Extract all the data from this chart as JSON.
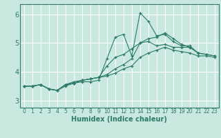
{
  "title": "",
  "xlabel": "Humidex (Indice chaleur)",
  "ylabel": "",
  "background_color": "#c8e8e0",
  "grid_color": "#ffffff",
  "line_color": "#2d7a6a",
  "xlim": [
    -0.5,
    23.5
  ],
  "ylim": [
    2.75,
    6.35
  ],
  "xticks": [
    0,
    1,
    2,
    3,
    4,
    5,
    6,
    7,
    8,
    9,
    10,
    11,
    12,
    13,
    14,
    15,
    16,
    17,
    18,
    19,
    20,
    21,
    22,
    23
  ],
  "yticks": [
    3,
    4,
    5,
    6
  ],
  "series": [
    [
      3.5,
      3.5,
      3.55,
      3.4,
      3.35,
      3.5,
      3.6,
      3.65,
      3.65,
      3.7,
      4.45,
      5.2,
      5.3,
      4.55,
      6.05,
      5.75,
      5.25,
      5.3,
      5.05,
      4.9,
      4.9,
      4.65,
      null,
      null
    ],
    [
      3.5,
      3.5,
      3.55,
      3.4,
      3.35,
      3.55,
      3.6,
      3.7,
      3.75,
      3.8,
      3.9,
      4.1,
      4.25,
      4.45,
      5.0,
      5.15,
      5.2,
      5.35,
      5.15,
      4.95,
      4.85,
      4.65,
      4.6,
      4.55
    ],
    [
      3.5,
      3.5,
      3.55,
      3.4,
      3.35,
      3.55,
      3.6,
      3.7,
      3.75,
      3.8,
      4.2,
      4.5,
      4.6,
      4.8,
      5.0,
      5.05,
      4.9,
      4.95,
      4.85,
      4.85,
      4.85,
      4.65,
      4.6,
      4.55
    ],
    [
      3.5,
      3.5,
      3.55,
      3.4,
      3.35,
      3.55,
      3.65,
      3.7,
      3.75,
      3.8,
      3.85,
      3.95,
      4.1,
      4.2,
      4.5,
      4.65,
      4.75,
      4.85,
      4.75,
      4.7,
      4.65,
      4.55,
      4.55,
      4.5
    ]
  ]
}
